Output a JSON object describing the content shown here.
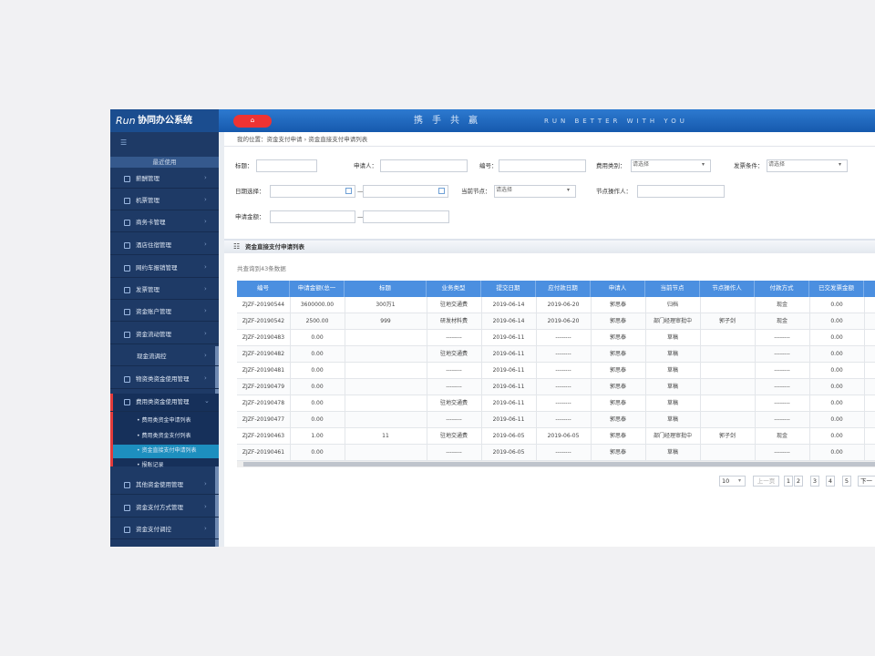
{
  "header": {
    "logo_mark": "Run",
    "logo": "协同办公系统",
    "home": "⌂",
    "slogan": "携　手　共　赢",
    "slogan_en": "RUN  BETTER  WITH  YOU"
  },
  "sidebar": {
    "menu_icon": "☰",
    "recent": "最近使用",
    "items": [
      "薪酬管理",
      "机票管理",
      "商务卡管理",
      "酒店住宿管理",
      "网约车报销管理",
      "发票管理",
      "资金账户管理",
      "资金流动管理",
      "现金流调控",
      "物资类资金使用管理",
      "费用类资金使用管理",
      "其他资金使用管理",
      "资金支付方式管理",
      "资金支付调控"
    ],
    "sub_items": [
      "费用类资金申请列表",
      "费用类资金支付列表",
      "资金直接支付申请列表",
      "报账记录"
    ]
  },
  "breadcrumb": "我的位置：资金支付申请 › 资金直接支付申请列表",
  "filters": [
    {
      "label": "标题："
    },
    {
      "label": "申请人："
    },
    {
      "label": "编号："
    },
    {
      "label": "费用类别：",
      "placeholder": "请选择"
    },
    {
      "label": "发票条件：",
      "placeholder": "请选择"
    },
    {
      "label": "日期选择："
    },
    {
      "label": "—"
    },
    {
      "label": "当前节点：",
      "placeholder": "请选择"
    },
    {
      "label": "节点操作人："
    },
    {
      "label": "申请金额："
    },
    {
      "label": "—"
    }
  ],
  "panel_title": "资金直接支付申请列表",
  "count_text": "共查询到43条数据",
  "table": {
    "columns": [
      "编号",
      "申请金额(总一",
      "标题",
      "业务类型",
      "提交日期",
      "应付款日期",
      "申请人",
      "当前节点",
      "节点操作人",
      "付款方式",
      "已交发票金额"
    ],
    "rows": [
      [
        "ZJZF-20190544",
        "3600000.00",
        "300万1",
        "驻地交通费",
        "2019-06-14",
        "2019-06-20",
        "郭思泰",
        "归档",
        null,
        "现金",
        "0.00"
      ],
      [
        "ZJZF-20190542",
        "2500.00",
        "999",
        "研发材料费",
        "2019-06-14",
        "2019-06-20",
        "郭思泰",
        "部门经理审批中",
        "郭子剑",
        "现金",
        "0.00"
      ],
      [
        "ZJZF-20190483",
        "0.00",
        null,
        "--------",
        "2019-06-11",
        "--------",
        "郭思泰",
        "草稿",
        null,
        "--------",
        "0.00"
      ],
      [
        "ZJZF-20190482",
        "0.00",
        null,
        "驻地交通费",
        "2019-06-11",
        "--------",
        "郭思泰",
        "草稿",
        null,
        "--------",
        "0.00"
      ],
      [
        "ZJZF-20190481",
        "0.00",
        null,
        "--------",
        "2019-06-11",
        "--------",
        "郭思泰",
        "草稿",
        null,
        "--------",
        "0.00"
      ],
      [
        "ZJZF-20190479",
        "0.00",
        null,
        "--------",
        "2019-06-11",
        "--------",
        "郭思泰",
        "草稿",
        null,
        "--------",
        "0.00"
      ],
      [
        "ZJZF-20190478",
        "0.00",
        null,
        "驻地交通费",
        "2019-06-11",
        "--------",
        "郭思泰",
        "草稿",
        null,
        "--------",
        "0.00"
      ],
      [
        "ZJZF-20190477",
        "0.00",
        null,
        "--------",
        "2019-06-11",
        "--------",
        "郭思泰",
        "草稿",
        null,
        "--------",
        "0.00"
      ],
      [
        "ZJZF-20190463",
        "1.00",
        "11",
        "驻地交通费",
        "2019-06-05",
        "2019-06-05",
        "郭思泰",
        "部门经理审批中",
        "郭子剑",
        "现金",
        "0.00"
      ],
      [
        "ZJZF-20190461",
        "0.00",
        null,
        "--------",
        "2019-06-05",
        "--------",
        "郭思泰",
        "草稿",
        null,
        "--------",
        "0.00"
      ]
    ]
  },
  "pagination": {
    "page_size": "10",
    "prev": "上一页",
    "pages": [
      1,
      2,
      3,
      4,
      5
    ],
    "next": "下一"
  }
}
